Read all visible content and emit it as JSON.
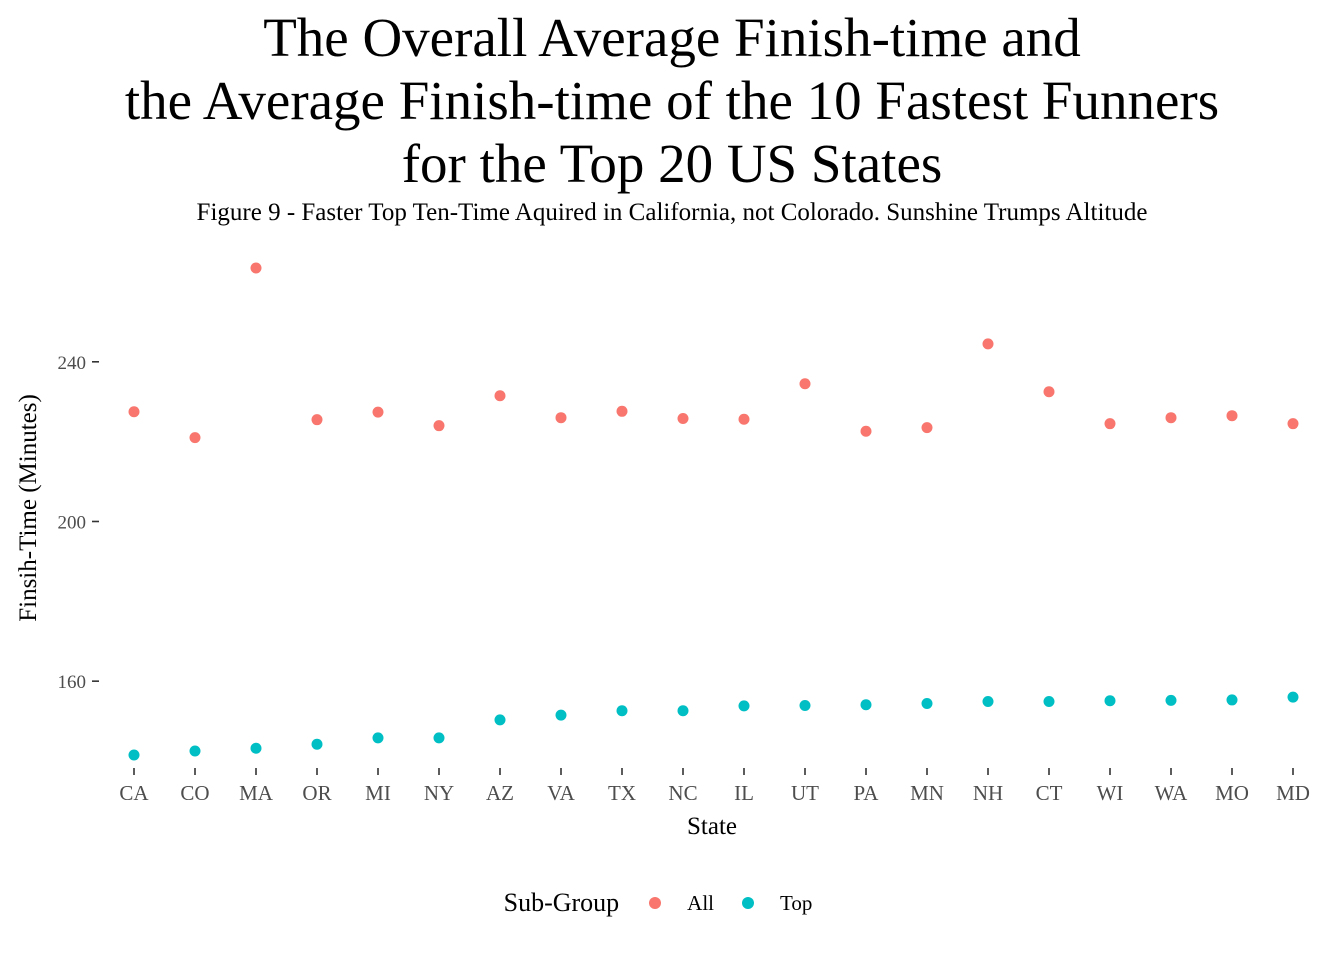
{
  "chart_data": {
    "type": "scatter",
    "title_lines": [
      "The Overall Average Finish-time and",
      "the Average Finish-time of the 10 Fastest Funners",
      "for the Top 20 US States"
    ],
    "subtitle": "Figure 9 - Faster Top Ten-Time Aquired in California, not Colorado. Sunshine Trumps Altitude",
    "xlabel": "State",
    "ylabel": "Finsih-Time (Minutes)",
    "categories": [
      "CA",
      "CO",
      "MA",
      "OR",
      "MI",
      "NY",
      "AZ",
      "VA",
      "TX",
      "NC",
      "IL",
      "UT",
      "PA",
      "MN",
      "NH",
      "CT",
      "WI",
      "WA",
      "MO",
      "MD"
    ],
    "yticks": [
      160,
      200,
      240
    ],
    "ylim": [
      139,
      265
    ],
    "grid": false,
    "legend_position": "bottom",
    "legend_title": "Sub-Group",
    "series": [
      {
        "name": "All",
        "color": "#F8766D",
        "values": [
          227.5,
          221.0,
          263.5,
          225.5,
          227.4,
          224.0,
          231.5,
          226.0,
          227.6,
          225.8,
          225.6,
          234.5,
          222.6,
          223.5,
          244.5,
          232.5,
          224.5,
          226.0,
          226.5,
          224.5
        ]
      },
      {
        "name": "Top",
        "color": "#00BFC4",
        "values": [
          141.5,
          142.5,
          143.2,
          144.2,
          145.8,
          145.8,
          150.3,
          151.5,
          152.6,
          152.6,
          153.8,
          153.9,
          154.1,
          154.4,
          154.9,
          154.9,
          155.1,
          155.2,
          155.3,
          156.0
        ]
      }
    ]
  }
}
